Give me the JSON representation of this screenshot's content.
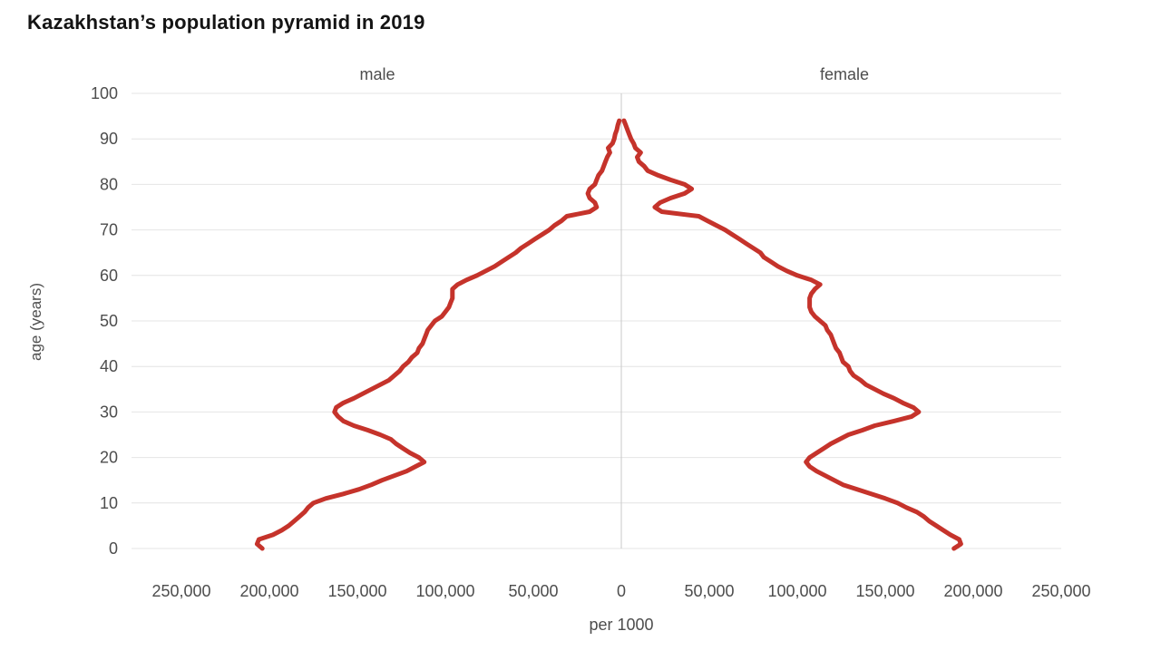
{
  "chart": {
    "title": "Kazakhstan’s population pyramid in 2019",
    "left_header": "male",
    "right_header": "female",
    "y_axis_label": "age (years)",
    "x_axis_label": "per 1000"
  },
  "chart_data": {
    "type": "line",
    "variant": "population-pyramid",
    "title": "Kazakhstan’s population pyramid in 2019",
    "xlabel": "per 1000",
    "ylabel": "age (years)",
    "grid": true,
    "x_max_per_side": 250000,
    "y_min": 0,
    "y_max": 100,
    "age_start": 0,
    "age_step": 1,
    "line_color": "#c5332b",
    "x_ticks": [
      {
        "v": -250000,
        "label": "250,000"
      },
      {
        "v": -200000,
        "label": "200,000"
      },
      {
        "v": -150000,
        "label": "150,000"
      },
      {
        "v": -100000,
        "label": "100,000"
      },
      {
        "v": -50000,
        "label": "50,000"
      },
      {
        "v": 0,
        "label": "0"
      },
      {
        "v": 50000,
        "label": "50,000"
      },
      {
        "v": 100000,
        "label": "100,000"
      },
      {
        "v": 150000,
        "label": "150,000"
      },
      {
        "v": 200000,
        "label": "200,000"
      },
      {
        "v": 250000,
        "label": "250,000"
      }
    ],
    "y_ticks": [
      {
        "v": 0,
        "label": "0"
      },
      {
        "v": 10,
        "label": "10"
      },
      {
        "v": 20,
        "label": "20"
      },
      {
        "v": 30,
        "label": "30"
      },
      {
        "v": 40,
        "label": "40"
      },
      {
        "v": 50,
        "label": "50"
      },
      {
        "v": 60,
        "label": "60"
      },
      {
        "v": 70,
        "label": "70"
      },
      {
        "v": 80,
        "label": "80"
      },
      {
        "v": 90,
        "label": "90"
      },
      {
        "v": 100,
        "label": "100"
      }
    ],
    "series": [
      {
        "name": "male",
        "side": "left",
        "color": "#c5332b",
        "values": [
          204000,
          207000,
          206000,
          198000,
          193000,
          189000,
          186000,
          183000,
          180000,
          178000,
          175000,
          168000,
          158000,
          149000,
          142000,
          136000,
          129000,
          122000,
          117000,
          112000,
          115000,
          120000,
          124000,
          128000,
          131000,
          137000,
          144000,
          152000,
          158000,
          161000,
          163000,
          162000,
          158000,
          152000,
          147000,
          142000,
          137000,
          132000,
          129000,
          126000,
          124000,
          121000,
          119000,
          116000,
          115000,
          113000,
          112000,
          111000,
          110000,
          108000,
          106000,
          102000,
          100000,
          98000,
          97000,
          96000,
          96000,
          96000,
          93000,
          88000,
          82000,
          77000,
          72000,
          68000,
          64000,
          60000,
          57000,
          53000,
          49000,
          45000,
          41000,
          38000,
          34000,
          31000,
          18000,
          14000,
          15000,
          18000,
          19000,
          18000,
          15000,
          14000,
          13000,
          11000,
          10000,
          9000,
          8000,
          6500,
          7500,
          5000,
          4000,
          3500,
          2600,
          2000,
          1200
        ]
      },
      {
        "name": "female",
        "side": "right",
        "color": "#c5332b",
        "values": [
          189000,
          193000,
          192000,
          187000,
          183000,
          179000,
          175000,
          172000,
          168000,
          162000,
          157000,
          150000,
          142000,
          134000,
          126000,
          121000,
          116000,
          111000,
          107000,
          105000,
          107000,
          111000,
          115000,
          119000,
          124000,
          129000,
          137000,
          144000,
          155000,
          165000,
          169000,
          166000,
          160000,
          155000,
          149000,
          144000,
          139000,
          136000,
          132000,
          130000,
          129000,
          126000,
          125000,
          124000,
          122000,
          121000,
          120000,
          119000,
          117000,
          116000,
          113000,
          110000,
          108000,
          107000,
          107000,
          107000,
          108000,
          110000,
          113000,
          108000,
          100000,
          94000,
          89000,
          85000,
          81000,
          79000,
          75000,
          71000,
          67000,
          63000,
          59000,
          54000,
          49000,
          44000,
          23000,
          19000,
          22000,
          28000,
          36000,
          40000,
          36000,
          28000,
          21000,
          15000,
          13000,
          10000,
          9000,
          11000,
          8000,
          7000,
          5500,
          4500,
          3500,
          2500,
          1500
        ]
      }
    ]
  }
}
